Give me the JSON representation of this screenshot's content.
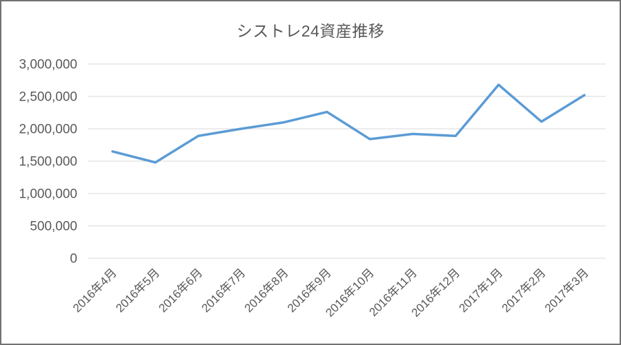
{
  "window": {
    "background_color": "#FFFFFF",
    "border_color": "#717171"
  },
  "chart_data": {
    "type": "line",
    "title": "シストレ24資産推移",
    "categories": [
      "2016年4月",
      "2016年5月",
      "2016年6月",
      "2016年7月",
      "2016年8月",
      "2016年9月",
      "2016年10月",
      "2016年11月",
      "2016年12月",
      "2017年1月",
      "2017年2月",
      "2017年3月"
    ],
    "values": [
      1650000,
      1480000,
      1890000,
      2000000,
      2100000,
      2260000,
      1840000,
      1920000,
      1890000,
      2680000,
      2110000,
      2520000
    ],
    "xlabel": "",
    "ylabel": "",
    "ylim": [
      0,
      3000000
    ],
    "ytick_interval": 500000,
    "yticks": [
      {
        "value": 0,
        "label": "0"
      },
      {
        "value": 500000,
        "label": "500,000"
      },
      {
        "value": 1000000,
        "label": "1,000,000"
      },
      {
        "value": 1500000,
        "label": "1,500,000"
      },
      {
        "value": 2000000,
        "label": "2,000,000"
      },
      {
        "value": 2500000,
        "label": "2,500,000"
      },
      {
        "value": 3000000,
        "label": "3,000,000"
      }
    ],
    "x_label_rotation_deg": -45,
    "grid": "horizontal",
    "legend": "none",
    "line_color": "#5B9BD5",
    "gridline_color": "#D9D9D9",
    "text_color": "#595959"
  }
}
